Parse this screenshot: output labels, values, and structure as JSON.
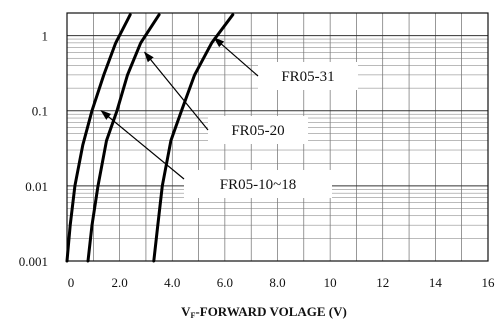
{
  "chart_data": {
    "type": "line",
    "x_scale": "linear",
    "y_scale": "log",
    "xlim": [
      0,
      16
    ],
    "ylim": [
      0.001,
      2
    ],
    "x_ticks": [
      {
        "value": 0,
        "label": "0"
      },
      {
        "value": 2,
        "label": "2.0"
      },
      {
        "value": 4,
        "label": "4.0"
      },
      {
        "value": 6,
        "label": "6.0"
      },
      {
        "value": 8,
        "label": "8.0"
      },
      {
        "value": 10,
        "label": "10"
      },
      {
        "value": 12,
        "label": "12"
      },
      {
        "value": 14,
        "label": "14"
      },
      {
        "value": 16,
        "label": "16"
      }
    ],
    "y_ticks": [
      {
        "value": 0.001,
        "label": "0.001"
      },
      {
        "value": 0.01,
        "label": "0.01"
      },
      {
        "value": 0.1,
        "label": "0.1"
      },
      {
        "value": 1,
        "label": "1"
      }
    ],
    "xlabel_main": "V",
    "xlabel_sub": "F",
    "xlabel_rest": "-FORWARD VOLAGE (V)",
    "grid": true,
    "series": [
      {
        "name": "FR05-10~18",
        "points": [
          [
            0.0,
            0.001
          ],
          [
            0.12,
            0.003
          ],
          [
            0.3,
            0.01
          ],
          [
            0.6,
            0.035
          ],
          [
            0.95,
            0.1
          ],
          [
            1.4,
            0.3
          ],
          [
            1.85,
            0.8
          ],
          [
            2.4,
            1.9
          ]
        ]
      },
      {
        "name": "FR05-20",
        "points": [
          [
            0.8,
            0.001
          ],
          [
            0.95,
            0.003
          ],
          [
            1.18,
            0.01
          ],
          [
            1.5,
            0.04
          ],
          [
            1.9,
            0.1
          ],
          [
            2.3,
            0.3
          ],
          [
            2.8,
            0.8
          ],
          [
            3.5,
            1.9
          ]
        ]
      },
      {
        "name": "FR05-31",
        "points": [
          [
            3.3,
            0.001
          ],
          [
            3.45,
            0.003
          ],
          [
            3.62,
            0.01
          ],
          [
            3.95,
            0.04
          ],
          [
            4.35,
            0.1
          ],
          [
            4.85,
            0.3
          ],
          [
            5.5,
            0.8
          ],
          [
            6.3,
            1.9
          ]
        ]
      }
    ],
    "annotations": [
      {
        "text": "FR05-31",
        "series": 2,
        "point": [
          5.6,
          0.93
        ]
      },
      {
        "text": "FR05-20",
        "series": 1,
        "point": [
          2.95,
          0.6
        ]
      },
      {
        "text": "FR05-10~18",
        "series": 0,
        "point": [
          1.3,
          0.1
        ]
      }
    ]
  }
}
